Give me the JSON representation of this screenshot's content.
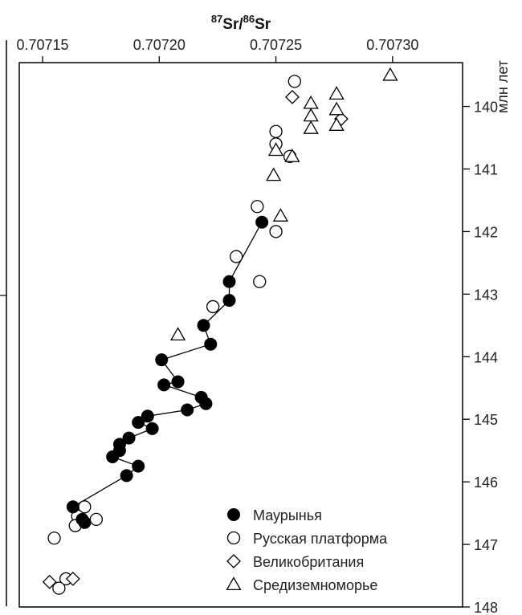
{
  "chart_data": {
    "type": "scatter",
    "title": "",
    "xlabel_parts": {
      "mass1": "87",
      "el1": "Sr",
      "slash": "/",
      "mass2": "86",
      "el2": "Sr"
    },
    "ylabel": "млн лет",
    "xlim": [
      0.70714,
      0.70733
    ],
    "ylim": [
      139.3,
      148
    ],
    "x_ticks": [
      0.70715,
      0.7072,
      0.70725,
      0.7073
    ],
    "x_tick_labels": [
      "0.70715",
      "0.70720",
      "0.70725",
      "0.70730"
    ],
    "y_ticks": [
      140,
      141,
      142,
      143,
      144,
      145,
      146,
      147,
      148
    ],
    "y_tick_labels": [
      "140",
      "141",
      "142",
      "143",
      "144",
      "145",
      "146",
      "147",
      "148"
    ],
    "legend_position": "bottom-right",
    "series": [
      {
        "name": "Маурынья",
        "marker": "filled-circle",
        "connected": true,
        "points": [
          [
            0.707244,
            141.85
          ],
          [
            0.70723,
            142.8
          ],
          [
            0.70723,
            143.1
          ],
          [
            0.707219,
            143.5
          ],
          [
            0.707222,
            143.8
          ],
          [
            0.707201,
            144.05
          ],
          [
            0.707208,
            144.4
          ],
          [
            0.707202,
            144.45
          ],
          [
            0.707218,
            144.65
          ],
          [
            0.70722,
            144.75
          ],
          [
            0.707212,
            144.85
          ],
          [
            0.707195,
            144.95
          ],
          [
            0.707191,
            145.05
          ],
          [
            0.707197,
            145.15
          ],
          [
            0.707187,
            145.3
          ],
          [
            0.707183,
            145.4
          ],
          [
            0.707183,
            145.5
          ],
          [
            0.70718,
            145.6
          ],
          [
            0.707191,
            145.75
          ],
          [
            0.707186,
            145.9
          ],
          [
            0.707163,
            146.4
          ],
          [
            0.707167,
            146.6
          ],
          [
            0.707168,
            146.65
          ]
        ]
      },
      {
        "name": "Русская платформа",
        "marker": "open-circle",
        "connected": false,
        "points": [
          [
            0.707258,
            139.6
          ],
          [
            0.70725,
            140.4
          ],
          [
            0.70725,
            140.6
          ],
          [
            0.707256,
            140.8
          ],
          [
            0.707242,
            141.6
          ],
          [
            0.70725,
            142.0
          ],
          [
            0.707233,
            142.4
          ],
          [
            0.707243,
            142.8
          ],
          [
            0.707223,
            143.2
          ],
          [
            0.707168,
            146.4
          ],
          [
            0.707165,
            146.55
          ],
          [
            0.707173,
            146.6
          ],
          [
            0.707164,
            146.7
          ],
          [
            0.707155,
            146.9
          ],
          [
            0.70716,
            147.55
          ],
          [
            0.707157,
            147.7
          ]
        ]
      },
      {
        "name": "Великобритания",
        "marker": "open-diamond",
        "connected": false,
        "points": [
          [
            0.707257,
            139.85
          ],
          [
            0.707278,
            140.2
          ],
          [
            0.707163,
            147.55
          ],
          [
            0.707153,
            147.6
          ]
        ]
      },
      {
        "name": "Средиземноморье",
        "marker": "open-triangle",
        "connected": false,
        "points": [
          [
            0.707299,
            139.5
          ],
          [
            0.707276,
            139.8
          ],
          [
            0.707265,
            139.95
          ],
          [
            0.707276,
            140.05
          ],
          [
            0.707265,
            140.15
          ],
          [
            0.707276,
            140.3
          ],
          [
            0.707265,
            140.35
          ],
          [
            0.70725,
            140.7
          ],
          [
            0.707257,
            140.8
          ],
          [
            0.707249,
            141.1
          ],
          [
            0.707252,
            141.75
          ],
          [
            0.707208,
            143.65
          ]
        ]
      }
    ]
  }
}
